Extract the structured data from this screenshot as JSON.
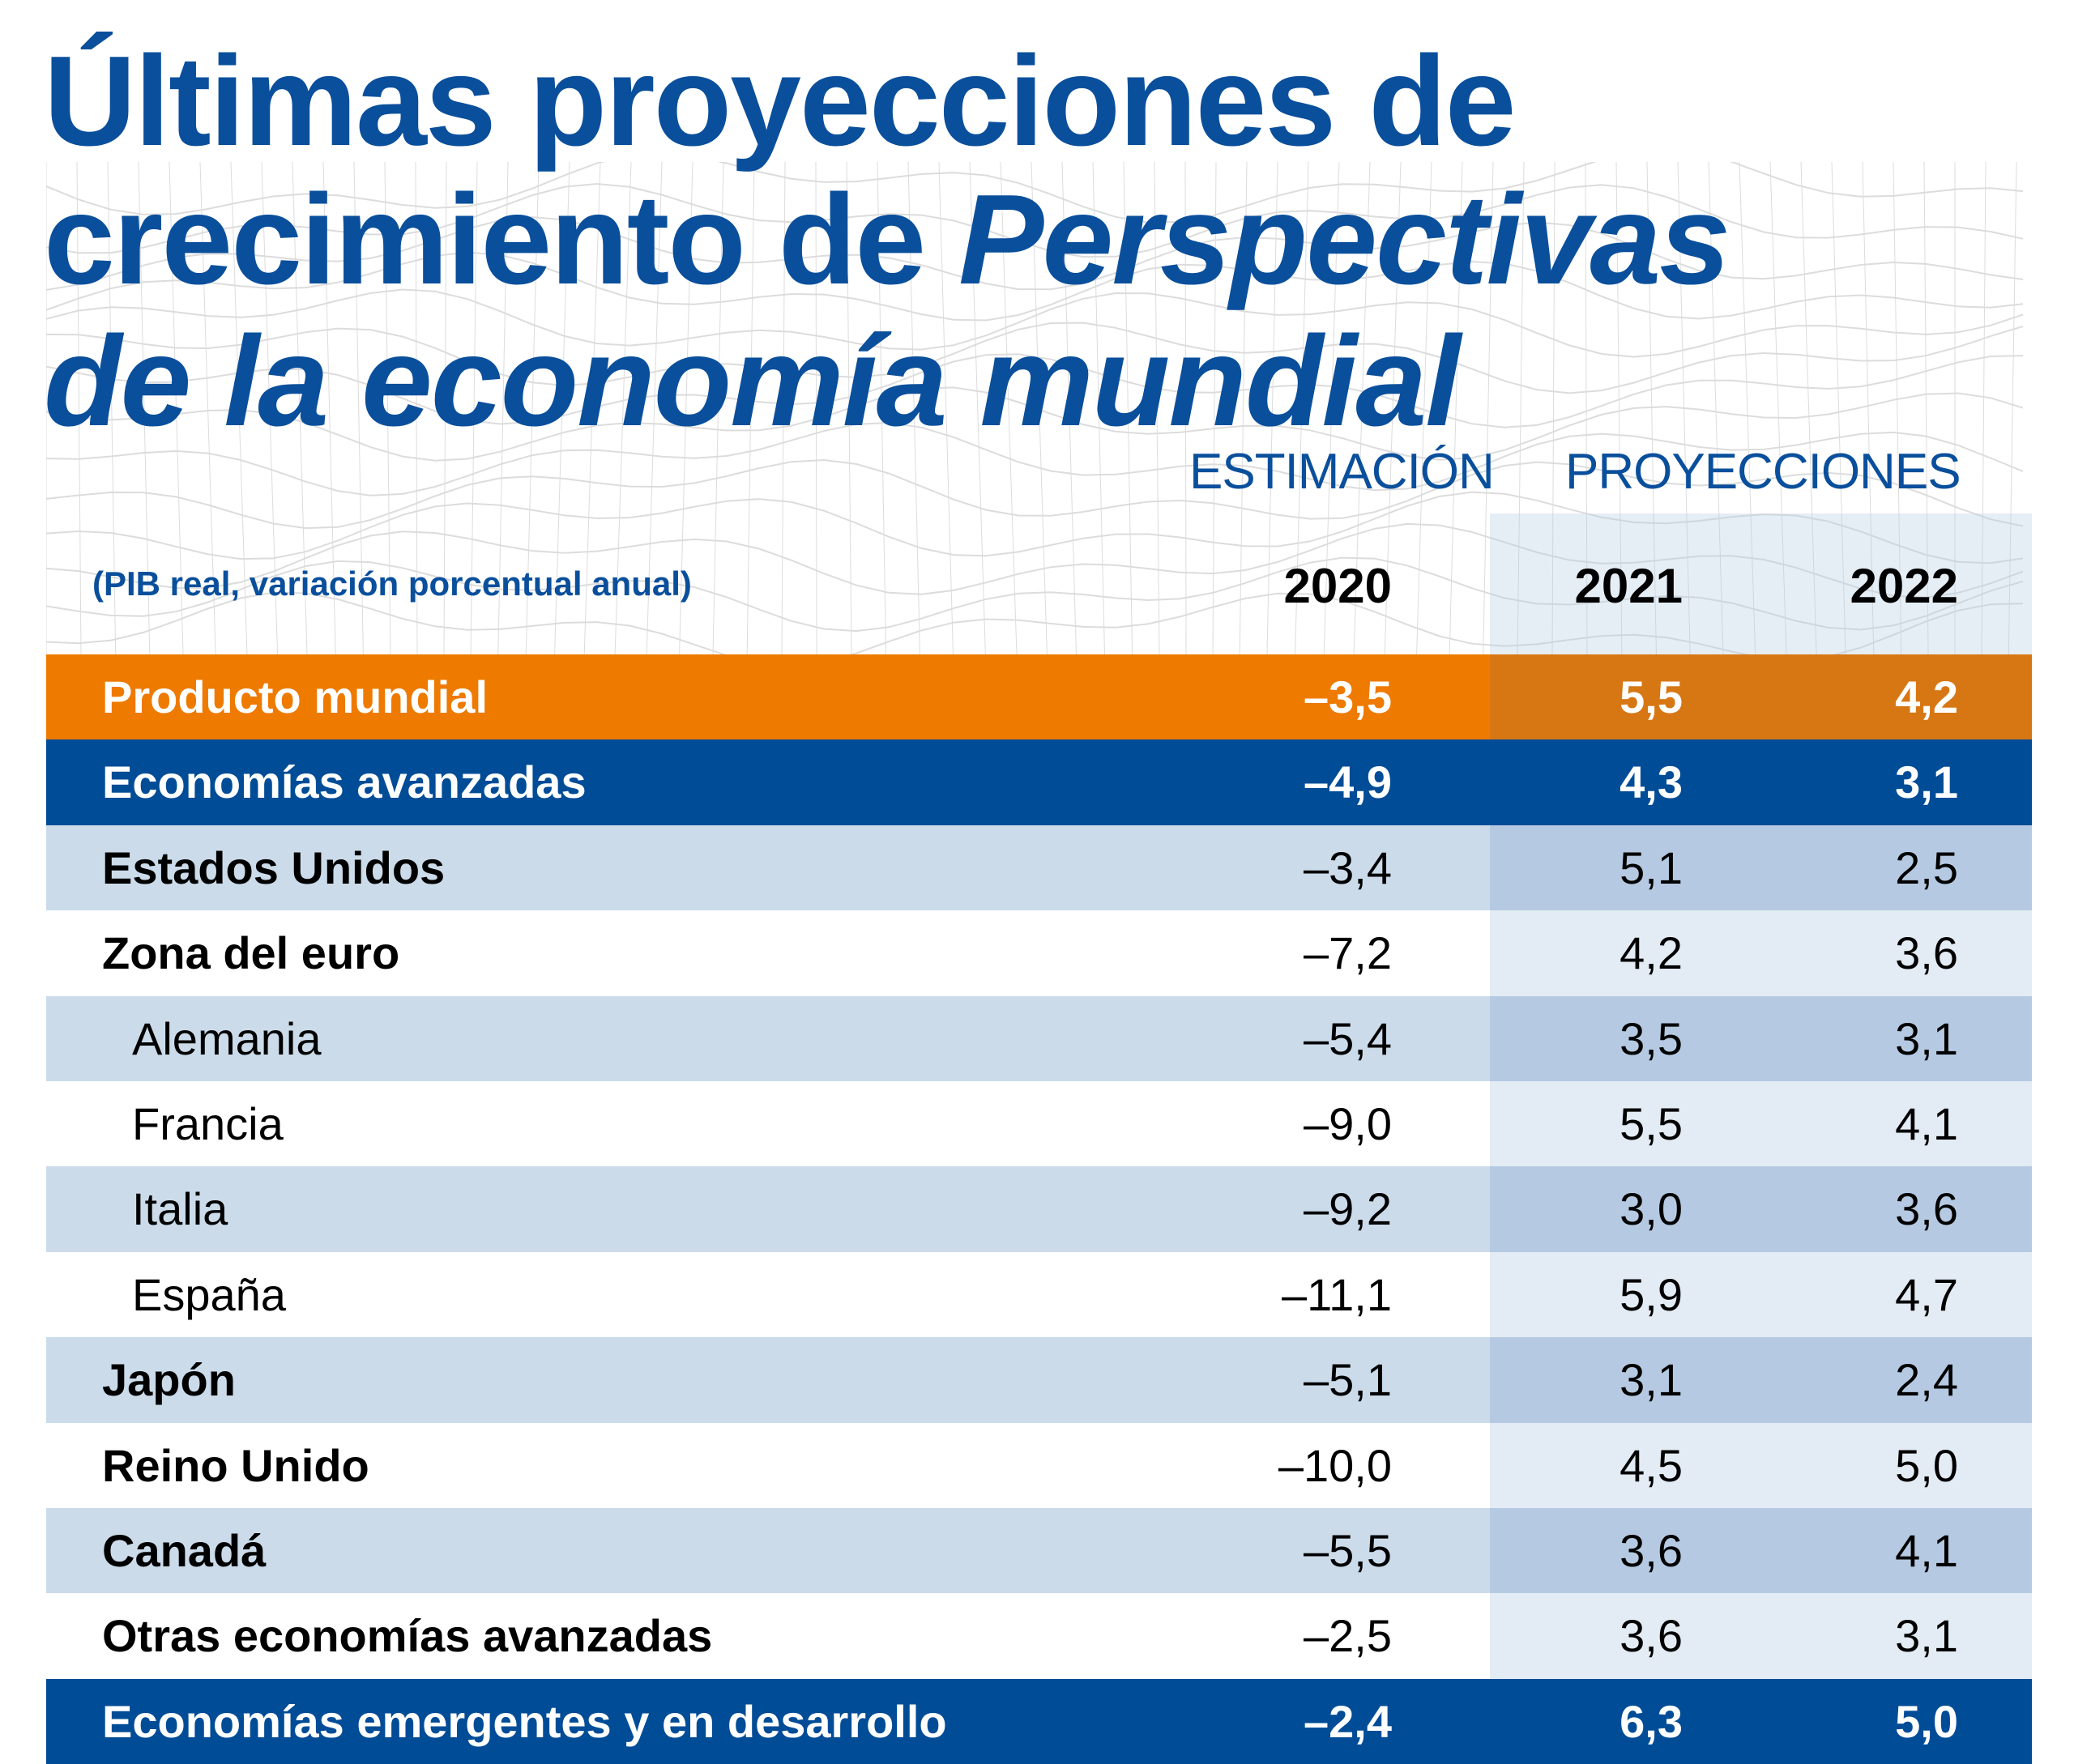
{
  "title": {
    "line1": "Últimas proyecciones de",
    "line2_plain": "crecimiento de ",
    "line2_italic": "Perspectivas",
    "line3_italic": "de la economía mundial"
  },
  "header": {
    "estimate_label": "ESTIMACIÓN",
    "projection_label": "PROYECCIONES",
    "subtitle": "(PIB real, variación porcentual anual)",
    "years": [
      "2020",
      "2021",
      "2022"
    ]
  },
  "colors": {
    "title_blue": "#0a4f9c",
    "orange": "#ee7a00",
    "orange_shaded": "#d77714",
    "blue": "#004c97",
    "light_row": "#cbdbea",
    "light_row_shaded": "#b5cae2",
    "white_row_shaded": "#e3ebf4"
  },
  "rows": [
    {
      "label": "Producto mundial",
      "values": [
        "–3,5",
        "5,5",
        "4,2"
      ]
    },
    {
      "label": "Economías avanzadas",
      "values": [
        "–4,9",
        "4,3",
        "3,1"
      ]
    },
    {
      "label": "Estados Unidos",
      "values": [
        "–3,4",
        "5,1",
        "2,5"
      ]
    },
    {
      "label": "Zona del euro",
      "values": [
        "–7,2",
        "4,2",
        "3,6"
      ]
    },
    {
      "label": "Alemania",
      "values": [
        "–5,4",
        "3,5",
        "3,1"
      ]
    },
    {
      "label": "Francia",
      "values": [
        "–9,0",
        "5,5",
        "4,1"
      ]
    },
    {
      "label": "Italia",
      "values": [
        "–9,2",
        "3,0",
        "3,6"
      ]
    },
    {
      "label": "España",
      "values": [
        "–11,1",
        "5,9",
        "4,7"
      ]
    },
    {
      "label": "Japón",
      "values": [
        "–5,1",
        "3,1",
        "2,4"
      ]
    },
    {
      "label": "Reino Unido",
      "values": [
        "–10,0",
        "4,5",
        "5,0"
      ]
    },
    {
      "label": "Canadá",
      "values": [
        "–5,5",
        "3,6",
        "4,1"
      ]
    },
    {
      "label": "Otras economías avanzadas",
      "values": [
        "–2,5",
        "3,6",
        "3,1"
      ]
    },
    {
      "label": "Economías emergentes y en desarrollo",
      "values": [
        "–2,4",
        "6,3",
        "5,0"
      ]
    }
  ]
}
